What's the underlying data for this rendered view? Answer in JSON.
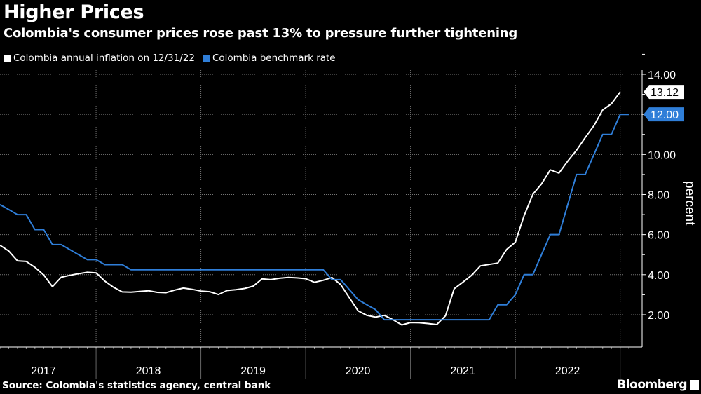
{
  "title": "Higher Prices",
  "subtitle": "Colombia's consumer prices rose past 13% to pressure further tightening",
  "source": "Source: Colombia's statistics agency, central bank",
  "logo": "Bloomberg",
  "colors": {
    "inflation": "#ffffff",
    "rate": "#2f7ed8",
    "background": "#000000"
  },
  "chart_data": {
    "type": "line",
    "title": "Higher Prices",
    "ylabel": "percent",
    "xlabel": "",
    "ylim": [
      0.5,
      14.5
    ],
    "yticks": [
      "2.00",
      "4.00",
      "6.00",
      "8.00",
      "10.00",
      "12.00",
      "14.00"
    ],
    "ytick_values": [
      2,
      4,
      6,
      8,
      10,
      12,
      14
    ],
    "xtick_labels": [
      "2017",
      "2018",
      "2019",
      "2020",
      "2021",
      "2022"
    ],
    "x_start": "2017-01",
    "x_freq": "monthly",
    "grid": true,
    "legend_placement": "top-left",
    "series": [
      {
        "name": "Colombia annual inflation on 12/31/22",
        "last_label": "13.12",
        "values": [
          5.47,
          5.18,
          4.69,
          4.66,
          4.37,
          3.99,
          3.4,
          3.87,
          3.97,
          4.05,
          4.12,
          4.09,
          3.68,
          3.37,
          3.14,
          3.13,
          3.16,
          3.2,
          3.12,
          3.1,
          3.23,
          3.33,
          3.27,
          3.18,
          3.15,
          3.01,
          3.21,
          3.25,
          3.31,
          3.43,
          3.79,
          3.75,
          3.82,
          3.86,
          3.84,
          3.8,
          3.62,
          3.72,
          3.86,
          3.51,
          2.85,
          2.19,
          1.97,
          1.88,
          1.97,
          1.75,
          1.49,
          1.61,
          1.6,
          1.56,
          1.51,
          1.95,
          3.3,
          3.63,
          3.97,
          4.44,
          4.51,
          4.58,
          5.26,
          5.62,
          6.94,
          8.01,
          8.53,
          9.23,
          9.07,
          9.67,
          10.21,
          10.84,
          11.44,
          12.22,
          12.53,
          13.12
        ]
      },
      {
        "name": "Colombia benchmark rate",
        "last_label": "12.00",
        "values": [
          7.5,
          7.25,
          7.0,
          7.0,
          6.25,
          6.25,
          5.5,
          5.5,
          5.25,
          5.0,
          4.75,
          4.75,
          4.5,
          4.5,
          4.5,
          4.25,
          4.25,
          4.25,
          4.25,
          4.25,
          4.25,
          4.25,
          4.25,
          4.25,
          4.25,
          4.25,
          4.25,
          4.25,
          4.25,
          4.25,
          4.25,
          4.25,
          4.25,
          4.25,
          4.25,
          4.25,
          4.25,
          4.25,
          3.75,
          3.75,
          3.25,
          2.75,
          2.5,
          2.25,
          1.75,
          1.75,
          1.75,
          1.75,
          1.75,
          1.75,
          1.75,
          1.75,
          1.75,
          1.75,
          1.75,
          1.75,
          1.75,
          2.5,
          2.5,
          3.0,
          4.0,
          4.0,
          5.0,
          6.0,
          6.0,
          7.5,
          9.0,
          9.0,
          10.0,
          11.0,
          11.0,
          12.0,
          12.0
        ]
      }
    ]
  }
}
